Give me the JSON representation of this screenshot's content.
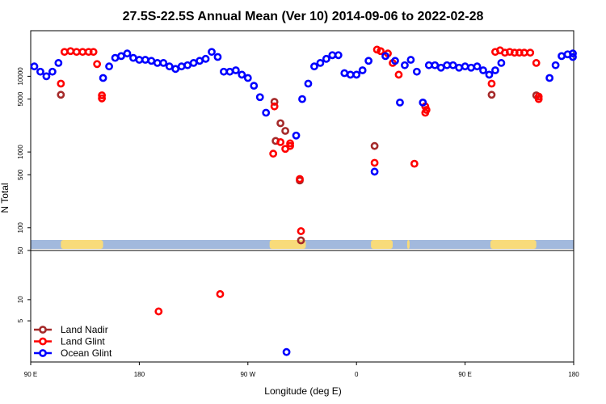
{
  "chart_data": {
    "type": "scatter",
    "title": "27.5S-22.5S Annual Mean (Ver 10)   2014-09-06 to 2022-02-28",
    "xlabel": "Longitude (deg E)",
    "ylabel": "N Total",
    "x_tick_labels": [
      "90 E",
      "180",
      "90 W",
      "0",
      "90 E",
      "180"
    ],
    "x_ticks": [
      90,
      180,
      270,
      360,
      450,
      540
    ],
    "xlim": [
      90,
      540
    ],
    "upper_y_tick_labels": [
      "100",
      "500",
      "1000",
      "5000",
      "10000"
    ],
    "upper_y_ticks": [
      100,
      500,
      1000,
      5000,
      10000
    ],
    "upper_ylim": [
      50,
      40000
    ],
    "lower_y_tick_labels": [
      "50",
      "10",
      "5"
    ],
    "lower_y_ticks": [
      50,
      10,
      5
    ],
    "lower_ylim": [
      1.3,
      50
    ],
    "y_scale": "log",
    "grid": false,
    "legend_position": "bottom-left",
    "series": [
      {
        "name": "Land Nadir",
        "color": "#a52a2a",
        "points": [
          [
            115,
            5700
          ],
          [
            292,
            4600
          ],
          [
            297,
            2400
          ],
          [
            301,
            1900
          ],
          [
            293,
            1400
          ],
          [
            313,
            420
          ],
          [
            314,
            68
          ],
          [
            375,
            1200
          ],
          [
            472,
            5700
          ],
          [
            509,
            5600
          ]
        ]
      },
      {
        "name": "Land Glint",
        "color": "#ff0000",
        "points": [
          [
            115,
            8000
          ],
          [
            118,
            21000
          ],
          [
            123,
            21500
          ],
          [
            128,
            21000
          ],
          [
            133,
            21000
          ],
          [
            138,
            21000
          ],
          [
            142,
            21000
          ],
          [
            145,
            14500
          ],
          [
            149,
            5600
          ],
          [
            149,
            5100
          ],
          [
            292,
            4000
          ],
          [
            291,
            950
          ],
          [
            297,
            1350
          ],
          [
            301,
            1100
          ],
          [
            305,
            1200
          ],
          [
            305,
            1300
          ],
          [
            313,
            440
          ],
          [
            314,
            90
          ],
          [
            375,
            720
          ],
          [
            377,
            22500
          ],
          [
            380,
            21500
          ],
          [
            386,
            20000
          ],
          [
            390,
            15000
          ],
          [
            395,
            10500
          ],
          [
            408,
            700
          ],
          [
            417,
            4000
          ],
          [
            417,
            3300
          ],
          [
            418,
            3600
          ],
          [
            472,
            8000
          ],
          [
            475,
            21000
          ],
          [
            479,
            22000
          ],
          [
            483,
            20500
          ],
          [
            487,
            21000
          ],
          [
            491,
            20500
          ],
          [
            495,
            20500
          ],
          [
            499,
            20500
          ],
          [
            504,
            20500
          ],
          [
            509,
            15000
          ],
          [
            511,
            5400
          ],
          [
            511,
            5000
          ],
          [
            196,
            6.8
          ],
          [
            247,
            12
          ]
        ]
      },
      {
        "name": "Ocean Glint",
        "color": "#0000ff",
        "points": [
          [
            93,
            13500
          ],
          [
            98,
            11500
          ],
          [
            103,
            10000
          ],
          [
            108,
            11500
          ],
          [
            113,
            15000
          ],
          [
            150,
            9500
          ],
          [
            155,
            13500
          ],
          [
            160,
            17500
          ],
          [
            165,
            18500
          ],
          [
            170,
            20000
          ],
          [
            175,
            17500
          ],
          [
            180,
            16500
          ],
          [
            185,
            16500
          ],
          [
            190,
            16000
          ],
          [
            195,
            15000
          ],
          [
            200,
            15000
          ],
          [
            205,
            13500
          ],
          [
            210,
            12500
          ],
          [
            215,
            13500
          ],
          [
            220,
            14000
          ],
          [
            225,
            15000
          ],
          [
            230,
            16000
          ],
          [
            235,
            17000
          ],
          [
            240,
            21000
          ],
          [
            245,
            18000
          ],
          [
            250,
            11500
          ],
          [
            255,
            11500
          ],
          [
            260,
            12000
          ],
          [
            265,
            10500
          ],
          [
            270,
            9500
          ],
          [
            275,
            7500
          ],
          [
            280,
            5300
          ],
          [
            285,
            3300
          ],
          [
            310,
            1650
          ],
          [
            315,
            5000
          ],
          [
            320,
            8000
          ],
          [
            325,
            13500
          ],
          [
            330,
            15000
          ],
          [
            335,
            17000
          ],
          [
            340,
            19000
          ],
          [
            345,
            19000
          ],
          [
            350,
            11000
          ],
          [
            355,
            10500
          ],
          [
            360,
            10500
          ],
          [
            365,
            12000
          ],
          [
            370,
            16000
          ],
          [
            375,
            550
          ],
          [
            384,
            18500
          ],
          [
            392,
            16000
          ],
          [
            396,
            4500
          ],
          [
            400,
            14000
          ],
          [
            405,
            16500
          ],
          [
            410,
            11500
          ],
          [
            415,
            4500
          ],
          [
            420,
            14000
          ],
          [
            425,
            14000
          ],
          [
            430,
            13000
          ],
          [
            435,
            14000
          ],
          [
            440,
            14000
          ],
          [
            445,
            13000
          ],
          [
            450,
            13500
          ],
          [
            455,
            13000
          ],
          [
            460,
            13500
          ],
          [
            465,
            12000
          ],
          [
            470,
            10500
          ],
          [
            475,
            12000
          ],
          [
            480,
            15000
          ],
          [
            520,
            9500
          ],
          [
            525,
            14000
          ],
          [
            530,
            18500
          ],
          [
            535,
            19500
          ],
          [
            540,
            20000
          ],
          [
            545,
            18000
          ],
          [
            302,
            1.8
          ]
        ]
      }
    ],
    "surface_bar": {
      "ocean_color": "#a2b9dd",
      "land_color": "#f8db7a",
      "land_segments": [
        [
          115,
          150
        ],
        [
          288,
          318
        ],
        [
          372,
          390
        ],
        [
          402,
          404
        ],
        [
          471,
          509
        ]
      ]
    }
  }
}
